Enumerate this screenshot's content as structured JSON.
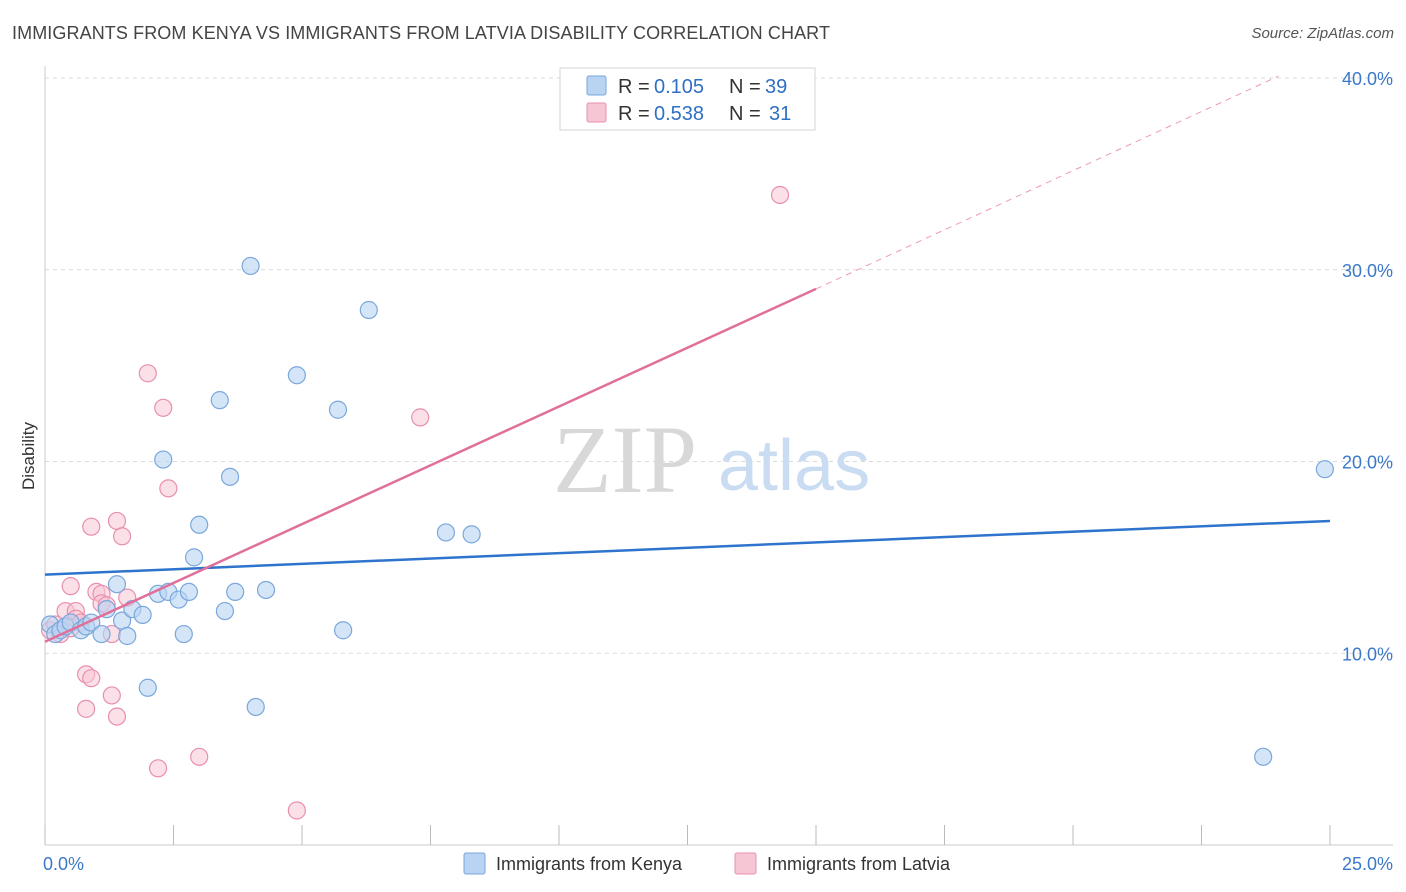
{
  "title": "IMMIGRANTS FROM KENYA VS IMMIGRANTS FROM LATVIA DISABILITY CORRELATION CHART",
  "source": "Source: ZipAtlas.com",
  "watermark": {
    "zip": "ZIP",
    "atlas": "atlas"
  },
  "colors": {
    "kenya_fill": "#b9d3f3",
    "kenya_stroke": "#7aa7dc",
    "kenya_line": "#2f74cc",
    "latvia_fill": "#f7c6d5",
    "latvia_stroke": "#e98fae",
    "latvia_line": "#e0709a",
    "tick": "#3b78c8",
    "grid": "#d9d9d9"
  },
  "legend": {
    "kenya": {
      "r_label": "R =",
      "r_value": "0.105",
      "n_label": "N =",
      "n_value": "39"
    },
    "latvia": {
      "r_label": "R =",
      "r_value": "0.538",
      "n_label": "N =",
      "n_value": "31"
    }
  },
  "chart_data": {
    "type": "scatter",
    "title": "IMMIGRANTS FROM KENYA VS IMMIGRANTS FROM LATVIA DISABILITY CORRELATION CHART",
    "xlabel": "",
    "ylabel": "Disability",
    "xlim": [
      0,
      25
    ],
    "ylim": [
      0,
      40
    ],
    "x_tick_labels": [
      "0.0%",
      "25.0%"
    ],
    "y_ticks": [
      10,
      20,
      30,
      40
    ],
    "y_tick_labels": [
      "10.0%",
      "20.0%",
      "30.0%",
      "40.0%"
    ],
    "grid": true,
    "legend_position": "top-center",
    "series": [
      {
        "name": "Immigrants from Kenya",
        "r": 0.105,
        "n": 39,
        "trend": {
          "x0": 0,
          "y0": 14.1,
          "x1": 25,
          "y1": 16.9
        },
        "points": [
          [
            0.1,
            11.5
          ],
          [
            0.2,
            11.0
          ],
          [
            0.3,
            11.2
          ],
          [
            0.4,
            11.4
          ],
          [
            0.5,
            11.6
          ],
          [
            0.7,
            11.2
          ],
          [
            0.8,
            11.4
          ],
          [
            0.9,
            11.6
          ],
          [
            1.1,
            11.0
          ],
          [
            1.2,
            12.3
          ],
          [
            1.4,
            13.6
          ],
          [
            1.5,
            11.7
          ],
          [
            1.6,
            10.9
          ],
          [
            1.7,
            12.3
          ],
          [
            1.9,
            12.0
          ],
          [
            2.0,
            8.2
          ],
          [
            2.2,
            13.1
          ],
          [
            2.3,
            20.1
          ],
          [
            2.4,
            13.2
          ],
          [
            2.6,
            12.8
          ],
          [
            2.7,
            11.0
          ],
          [
            2.8,
            13.2
          ],
          [
            2.9,
            15.0
          ],
          [
            3.0,
            16.7
          ],
          [
            3.4,
            23.2
          ],
          [
            3.5,
            12.2
          ],
          [
            3.6,
            19.2
          ],
          [
            3.7,
            13.2
          ],
          [
            4.0,
            30.2
          ],
          [
            4.1,
            7.2
          ],
          [
            4.3,
            13.3
          ],
          [
            4.9,
            24.5
          ],
          [
            5.7,
            22.7
          ],
          [
            5.8,
            11.2
          ],
          [
            6.3,
            27.9
          ],
          [
            7.8,
            16.3
          ],
          [
            8.3,
            16.2
          ],
          [
            23.7,
            4.6
          ],
          [
            24.9,
            19.6
          ]
        ]
      },
      {
        "name": "Immigrants from Latvia",
        "r": 0.538,
        "n": 31,
        "trend": {
          "x0": 0,
          "y0": 10.6,
          "x1": 15,
          "y1": 29.0,
          "dashed_to_x": 24,
          "dashed_to_y": 40.1
        },
        "points": [
          [
            0.1,
            11.2
          ],
          [
            0.2,
            11.5
          ],
          [
            0.3,
            11.0
          ],
          [
            0.4,
            12.2
          ],
          [
            0.5,
            11.3
          ],
          [
            0.5,
            13.5
          ],
          [
            0.6,
            12.2
          ],
          [
            0.6,
            11.8
          ],
          [
            0.7,
            11.6
          ],
          [
            0.8,
            8.9
          ],
          [
            0.8,
            7.1
          ],
          [
            0.9,
            8.7
          ],
          [
            0.9,
            16.6
          ],
          [
            1.0,
            13.2
          ],
          [
            1.1,
            13.1
          ],
          [
            1.1,
            12.6
          ],
          [
            1.2,
            12.5
          ],
          [
            1.3,
            11.0
          ],
          [
            1.3,
            7.8
          ],
          [
            1.4,
            16.9
          ],
          [
            1.4,
            6.7
          ],
          [
            1.5,
            16.1
          ],
          [
            1.6,
            12.9
          ],
          [
            2.0,
            24.6
          ],
          [
            2.2,
            4.0
          ],
          [
            2.3,
            22.8
          ],
          [
            2.4,
            18.6
          ],
          [
            3.0,
            4.6
          ],
          [
            4.9,
            1.8
          ],
          [
            7.3,
            22.3
          ],
          [
            14.3,
            33.9
          ]
        ]
      }
    ]
  },
  "bottom_legend": {
    "kenya": "Immigrants from Kenya",
    "latvia": "Immigrants from Latvia"
  }
}
